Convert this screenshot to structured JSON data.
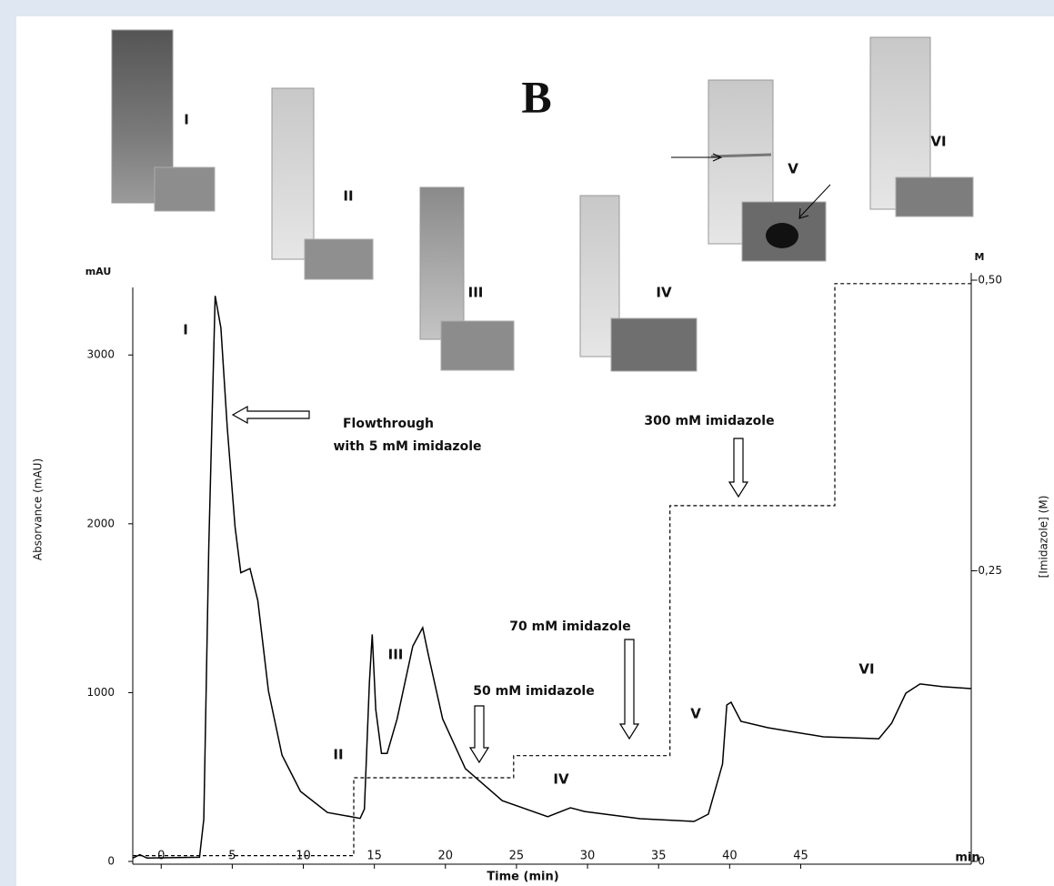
{
  "chart_data": {
    "type": "line",
    "panel_label": "B",
    "xlabel": "Time (min)",
    "xunit": "min",
    "ylabel": "Absorvance (mAU)",
    "yunit": "mAU",
    "y2label": "[Imidazole] (M)",
    "y2unit": "M",
    "xlim": [
      -2,
      57
    ],
    "xticks": [
      0,
      5,
      10,
      15,
      20,
      25,
      30,
      35,
      40,
      45
    ],
    "ylim": [
      0,
      3400
    ],
    "yticks": [
      0,
      1000,
      2000,
      3000
    ],
    "y2lim": [
      0,
      0.5
    ],
    "y2ticks": [
      {
        "value": 0,
        "label": "-0"
      },
      {
        "value": 0.25,
        "label": "-0,25"
      },
      {
        "value": 0.5,
        "label": "-0,50"
      }
    ],
    "series": [
      {
        "color": "#000000",
        "line_style": "solid",
        "x": [
          -2,
          -1.5,
          -1,
          2.7,
          3.0,
          3.35,
          3.8,
          4.2,
          4.65,
          5.2,
          5.6,
          6.25,
          6.8,
          7.55,
          8.5,
          9.8,
          11.7,
          13.35,
          14.0,
          14.3,
          14.65,
          14.85,
          15.1,
          15.5,
          15.9,
          16.6,
          17.7,
          18.4,
          18.8,
          19.8,
          21.4,
          24.0,
          27.2,
          28.8,
          29.8,
          33.7,
          37.5,
          38.5,
          39.5,
          39.8,
          40.1,
          40.8,
          42.7,
          46.6,
          50.5,
          51.4,
          52.4,
          53.4,
          55,
          57
        ],
        "values": [
          20,
          40,
          20,
          25,
          250,
          1870,
          3350,
          3160,
          2570,
          1980,
          1710,
          1735,
          1545,
          1010,
          630,
          415,
          290,
          265,
          255,
          310,
          1060,
          1345,
          900,
          640,
          640,
          845,
          1275,
          1385,
          1225,
          845,
          550,
          360,
          265,
          318,
          296,
          253,
          237,
          280,
          577,
          927,
          943,
          830,
          792,
          738,
          727,
          819,
          997,
          1051,
          1035,
          1024
        ]
      },
      {
        "color": "#000000",
        "line_style": "dashed",
        "axis": "y2",
        "x": [
          -2,
          13.55,
          13.55,
          24.8,
          24.8,
          35.8,
          35.8,
          47.4,
          47.4,
          57
        ],
        "values": [
          0.005,
          0.005,
          0.072,
          0.072,
          0.091,
          0.091,
          0.306,
          0.306,
          0.497,
          0.497
        ]
      }
    ],
    "peak_labels": [
      "I",
      "II",
      "III",
      "IV",
      "V",
      "VI"
    ],
    "gel_labels": [
      "I",
      "II",
      "III",
      "IV",
      "V",
      "VI"
    ],
    "annotations": [
      "Flowthrough",
      "with 5 mM imidazole",
      "50 mM imidazole",
      "70 mM imidazole",
      "300 mM imidazole"
    ]
  }
}
